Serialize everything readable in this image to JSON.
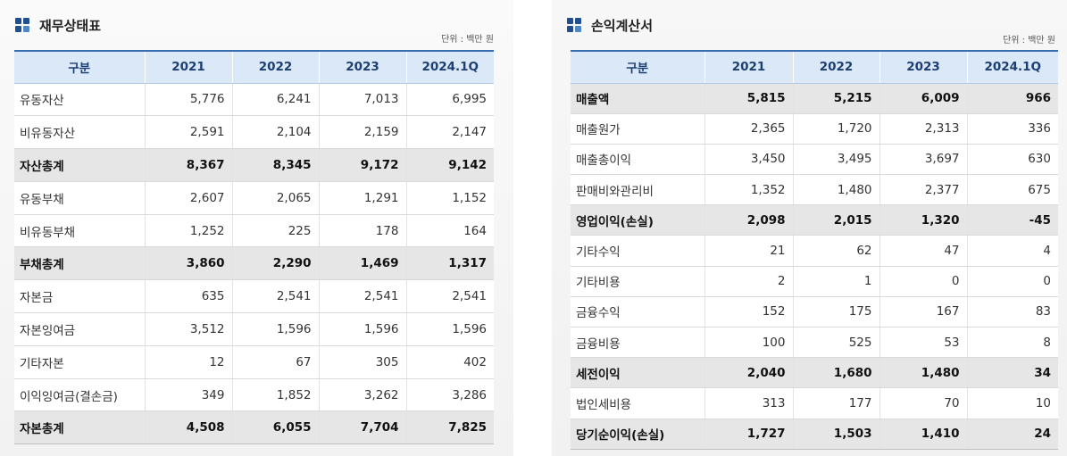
{
  "balance_sheet": {
    "title": "재무상태표",
    "unit": "단위 : 백만 원",
    "headers": [
      "구분",
      "2021",
      "2022",
      "2023",
      "2024.1Q"
    ],
    "rows": [
      {
        "label": "유동자산",
        "values": [
          "5,776",
          "6,241",
          "7,013",
          "6,995"
        ],
        "total": false
      },
      {
        "label": "비유동자산",
        "values": [
          "2,591",
          "2,104",
          "2,159",
          "2,147"
        ],
        "total": false
      },
      {
        "label": "자산총계",
        "values": [
          "8,367",
          "8,345",
          "9,172",
          "9,142"
        ],
        "total": true
      },
      {
        "label": "유동부채",
        "values": [
          "2,607",
          "2,065",
          "1,291",
          "1,152"
        ],
        "total": false
      },
      {
        "label": "비유동부채",
        "values": [
          "1,252",
          "225",
          "178",
          "164"
        ],
        "total": false
      },
      {
        "label": "부채총계",
        "values": [
          "3,860",
          "2,290",
          "1,469",
          "1,317"
        ],
        "total": true
      },
      {
        "label": "자본금",
        "values": [
          "635",
          "2,541",
          "2,541",
          "2,541"
        ],
        "total": false
      },
      {
        "label": "자본잉여금",
        "values": [
          "3,512",
          "1,596",
          "1,596",
          "1,596"
        ],
        "total": false
      },
      {
        "label": "기타자본",
        "values": [
          "12",
          "67",
          "305",
          "402"
        ],
        "total": false
      },
      {
        "label": "이익잉여금(결손금)",
        "values": [
          "349",
          "1,852",
          "3,262",
          "3,286"
        ],
        "total": false
      },
      {
        "label": "자본총계",
        "values": [
          "4,508",
          "6,055",
          "7,704",
          "7,825"
        ],
        "total": true
      }
    ]
  },
  "income_statement": {
    "title": "손익계산서",
    "unit": "단위 : 백만 원",
    "headers": [
      "구분",
      "2021",
      "2022",
      "2023",
      "2024.1Q"
    ],
    "rows": [
      {
        "label": "매출액",
        "values": [
          "5,815",
          "5,215",
          "6,009",
          "966"
        ],
        "total": true
      },
      {
        "label": "매출원가",
        "values": [
          "2,365",
          "1,720",
          "2,313",
          "336"
        ],
        "total": false
      },
      {
        "label": "매출총이익",
        "values": [
          "3,450",
          "3,495",
          "3,697",
          "630"
        ],
        "total": false
      },
      {
        "label": "판매비와관리비",
        "values": [
          "1,352",
          "1,480",
          "2,377",
          "675"
        ],
        "total": false
      },
      {
        "label": "영업이익(손실)",
        "values": [
          "2,098",
          "2,015",
          "1,320",
          "-45"
        ],
        "total": true
      },
      {
        "label": "기타수익",
        "values": [
          "21",
          "62",
          "47",
          "4"
        ],
        "total": false
      },
      {
        "label": "기타비용",
        "values": [
          "2",
          "1",
          "0",
          "0"
        ],
        "total": false
      },
      {
        "label": "금융수익",
        "values": [
          "152",
          "175",
          "167",
          "83"
        ],
        "total": false
      },
      {
        "label": "금융비용",
        "values": [
          "100",
          "525",
          "53",
          "8"
        ],
        "total": false
      },
      {
        "label": "세전이익",
        "values": [
          "2,040",
          "1,680",
          "1,480",
          "34"
        ],
        "total": true
      },
      {
        "label": "법인세비용",
        "values": [
          "313",
          "177",
          "70",
          "10"
        ],
        "total": false
      },
      {
        "label": "당기순이익(손실)",
        "values": [
          "1,727",
          "1,503",
          "1,410",
          "24"
        ],
        "total": true
      }
    ]
  },
  "colors": {
    "header_bg": "#dbe8f7",
    "header_text": "#1b3f74",
    "header_rule": "#3b6db3",
    "total_row_bg": "#e6e6e6",
    "icon": "#1f4f8f"
  },
  "icons": {
    "section": "building-blocks-icon"
  }
}
